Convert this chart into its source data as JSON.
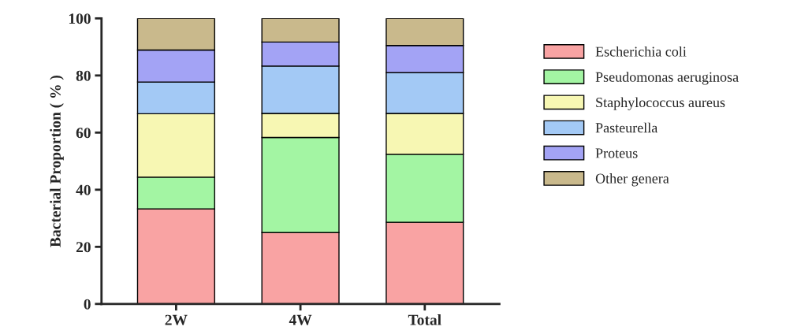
{
  "chart_data": {
    "type": "bar",
    "stacked": true,
    "ylabel": "Bacterial Proportion ( % )",
    "categories": [
      "2W",
      "4W",
      "Total"
    ],
    "series": [
      {
        "name": "Escherichia coli",
        "color": "#f9a3a3",
        "values": [
          33.3,
          25.0,
          28.6
        ]
      },
      {
        "name": "Pseudomonas aeruginosa",
        "color": "#a3f5a3",
        "values": [
          11.1,
          33.3,
          23.8
        ]
      },
      {
        "name": "Staphylococcus aureus",
        "color": "#f7f7b3",
        "values": [
          22.2,
          8.4,
          14.3
        ]
      },
      {
        "name": "Pasteurella",
        "color": "#a3c9f5",
        "values": [
          11.1,
          16.6,
          14.3
        ]
      },
      {
        "name": "Proteus",
        "color": "#a3a3f5",
        "values": [
          11.2,
          8.4,
          9.5
        ]
      },
      {
        "name": "Other genera",
        "color": "#c9b98c",
        "values": [
          11.1,
          8.3,
          9.5
        ]
      }
    ],
    "ylim": [
      0,
      100
    ],
    "yticks": [
      0,
      20,
      40,
      60,
      80,
      100
    ],
    "grid": false,
    "legend": "right"
  }
}
